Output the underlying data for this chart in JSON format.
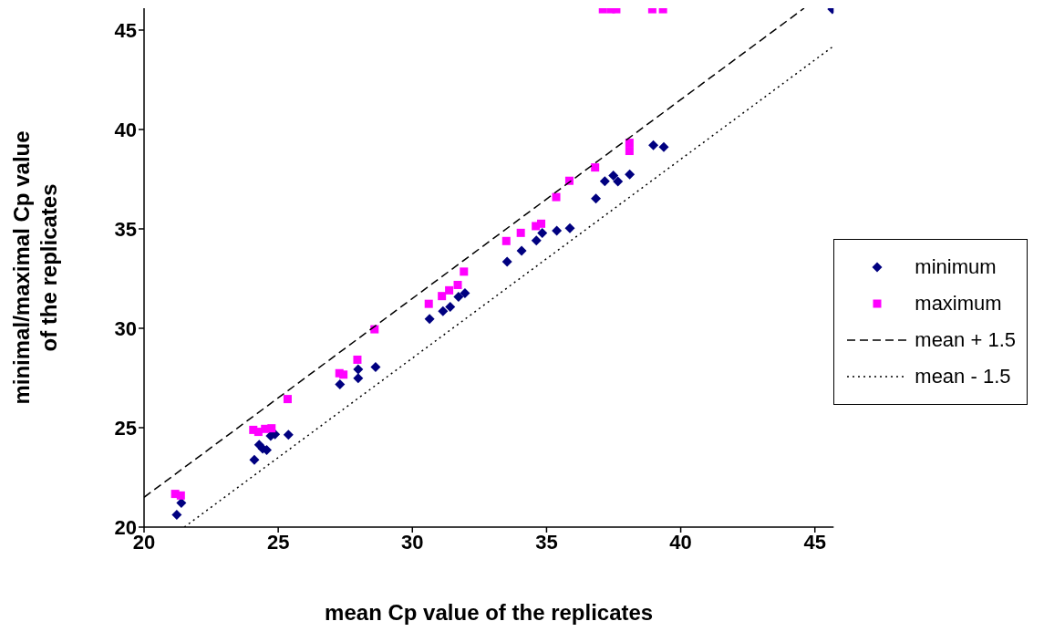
{
  "chart_data": {
    "type": "scatter",
    "xlabel": "mean Cp value of the replicates",
    "ylabel": "minimal/maximal Cp value of the replicates",
    "xlim": [
      20,
      45.7
    ],
    "ylim": [
      20,
      46.1
    ],
    "xticks": [
      20,
      25,
      30,
      35,
      40,
      45
    ],
    "yticks": [
      20,
      25,
      30,
      35,
      40,
      45
    ],
    "grid": false,
    "legend": "right",
    "series": [
      {
        "name": "minimum",
        "type": "scatter",
        "marker": "diamond",
        "color": "#000080",
        "x": [
          21.22,
          21.39,
          24.11,
          24.29,
          24.42,
          24.57,
          24.72,
          24.88,
          25.38,
          27.3,
          27.98,
          27.98,
          28.63,
          30.64,
          31.14,
          31.41,
          31.72,
          31.96,
          33.53,
          34.07,
          34.62,
          34.84,
          35.38,
          35.87,
          36.84,
          37.17,
          37.49,
          37.66,
          38.1,
          38.98,
          39.37,
          45.65
        ],
        "values": [
          20.62,
          21.21,
          23.38,
          24.14,
          23.94,
          23.88,
          24.59,
          24.67,
          24.65,
          27.18,
          27.49,
          27.94,
          28.05,
          30.47,
          30.86,
          31.08,
          31.58,
          31.76,
          33.35,
          33.9,
          34.42,
          34.79,
          34.91,
          35.03,
          36.53,
          37.4,
          37.68,
          37.38,
          37.74,
          39.21,
          39.12,
          46.05
        ]
      },
      {
        "name": "maximum",
        "type": "scatter",
        "marker": "square",
        "color": "#ff00ff",
        "x": [
          21.16,
          21.37,
          24.07,
          24.26,
          24.51,
          24.75,
          25.35,
          27.28,
          27.43,
          27.95,
          28.59,
          30.61,
          31.1,
          31.37,
          31.69,
          31.92,
          33.5,
          34.04,
          34.6,
          34.8,
          35.36,
          35.85,
          36.81,
          38.09,
          38.09,
          37.1,
          37.4,
          37.6,
          38.94,
          39.34
        ],
        "values": [
          21.67,
          21.59,
          24.89,
          24.79,
          24.94,
          24.97,
          26.44,
          27.74,
          27.67,
          28.42,
          29.95,
          31.23,
          31.62,
          31.91,
          32.18,
          32.85,
          34.39,
          34.8,
          35.14,
          35.26,
          36.6,
          37.42,
          38.09,
          39.33,
          38.92,
          46.05,
          46.05,
          46.05,
          46.05,
          46.05
        ]
      },
      {
        "name": "mean + 1.5",
        "type": "line",
        "line_style": "dashed",
        "color": "#000000",
        "x": [
          20,
          44.6
        ],
        "values": [
          21.5,
          46.1
        ]
      },
      {
        "name": "mean - 1.5",
        "type": "line",
        "line_style": "dotted",
        "color": "#000000",
        "x": [
          21.5,
          45.7
        ],
        "values": [
          20,
          44.2
        ]
      }
    ]
  }
}
